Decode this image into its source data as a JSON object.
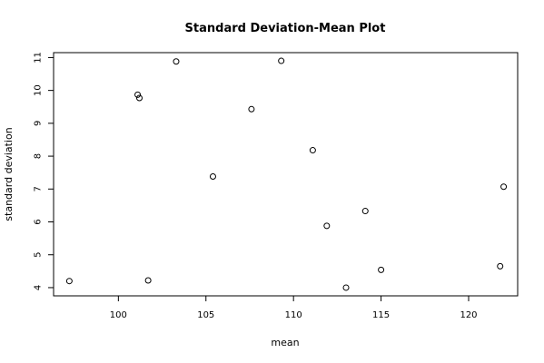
{
  "chart_data": {
    "type": "scatter",
    "title": "Standard Deviation-Mean Plot",
    "xlabel": "mean",
    "ylabel": "standard deviation",
    "xlim": [
      96.3,
      122.8
    ],
    "ylim": [
      3.75,
      11.15
    ],
    "xticks": [
      100,
      105,
      110,
      115,
      120
    ],
    "yticks": [
      4,
      5,
      6,
      7,
      8,
      9,
      10,
      11
    ],
    "grid": false,
    "marker": "open-circle",
    "points": [
      {
        "x": 97.2,
        "y": 4.2
      },
      {
        "x": 101.1,
        "y": 9.87
      },
      {
        "x": 101.2,
        "y": 9.77
      },
      {
        "x": 101.7,
        "y": 4.22
      },
      {
        "x": 103.3,
        "y": 10.88
      },
      {
        "x": 105.4,
        "y": 7.38
      },
      {
        "x": 107.6,
        "y": 9.43
      },
      {
        "x": 109.3,
        "y": 10.9
      },
      {
        "x": 111.1,
        "y": 8.18
      },
      {
        "x": 111.9,
        "y": 5.88
      },
      {
        "x": 113.0,
        "y": 4.0
      },
      {
        "x": 114.1,
        "y": 6.33
      },
      {
        "x": 115.0,
        "y": 4.54
      },
      {
        "x": 121.8,
        "y": 4.65
      },
      {
        "x": 122.0,
        "y": 7.07
      }
    ]
  }
}
